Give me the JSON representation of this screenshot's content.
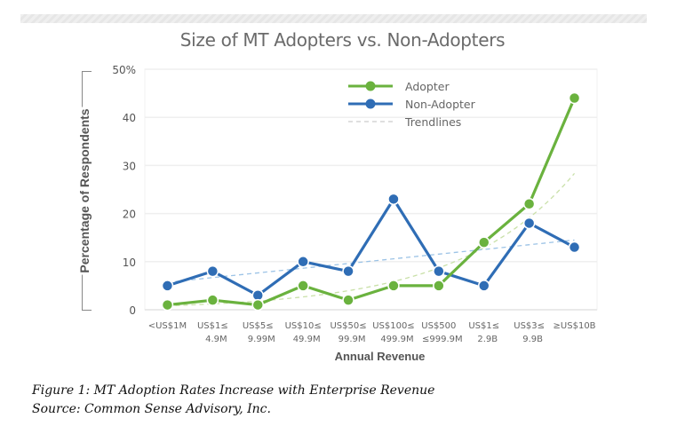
{
  "chart_data": {
    "type": "line",
    "title": "Size of MT Adopters vs. Non-Adopters",
    "xlabel": "Annual Revenue",
    "ylabel": "Percentage of Respondents",
    "ylim": [
      0,
      50
    ],
    "yticks": [
      "0",
      "10",
      "20",
      "30",
      "40",
      "50%"
    ],
    "ytick_values": [
      0,
      10,
      20,
      30,
      40,
      50
    ],
    "grid": true,
    "legend_position": "top-center",
    "categories": [
      [
        "<US$1M",
        ""
      ],
      [
        "US$1≤",
        "4.9M"
      ],
      [
        "US$5≤",
        "9.99M"
      ],
      [
        "US$10≤",
        "49.9M"
      ],
      [
        "US$50≤",
        "99.9M"
      ],
      [
        "US$100≤",
        "499.9M"
      ],
      [
        "US$500",
        "≤999.9M"
      ],
      [
        "US$1≤",
        "2.9B"
      ],
      [
        "US$3≤",
        "9.9B"
      ],
      [
        "≥US$10B",
        ""
      ]
    ],
    "series": [
      {
        "name": "Adopter",
        "color": "#6ab23e",
        "values": [
          1,
          2,
          1,
          5,
          2,
          5,
          5,
          14,
          22,
          44
        ],
        "trendline": "exponential"
      },
      {
        "name": "Non-Adopter",
        "color": "#2f6db5",
        "values": [
          5,
          8,
          3,
          10,
          8,
          23,
          8,
          5,
          18,
          13
        ],
        "trendline": "linear"
      }
    ],
    "legend": [
      {
        "label": "Adopter",
        "style": "line-marker",
        "color": "#6ab23e"
      },
      {
        "label": "Non-Adopter",
        "style": "line-marker",
        "color": "#2f6db5"
      },
      {
        "label": "Trendlines",
        "style": "dashed",
        "color": "#cccccc"
      }
    ]
  },
  "caption": {
    "line1": "Figure 1: MT Adoption Rates Increase with Enterprise Revenue",
    "line2": "Source: Common Sense Advisory, Inc."
  }
}
